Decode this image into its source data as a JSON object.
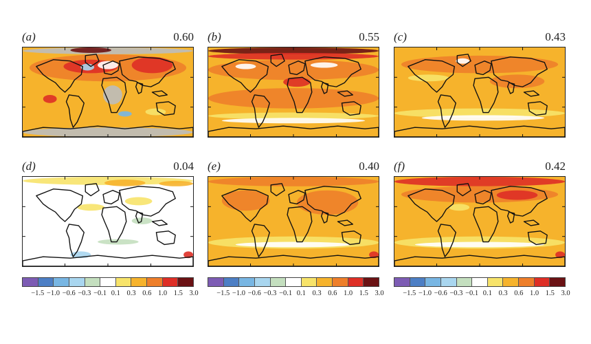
{
  "panels": [
    {
      "label": "(a)",
      "value": "0.60",
      "style": "a"
    },
    {
      "label": "(b)",
      "value": "0.55",
      "style": "b"
    },
    {
      "label": "(c)",
      "value": "0.43",
      "style": "c"
    },
    {
      "label": "(d)",
      "value": "0.04",
      "style": "d"
    },
    {
      "label": "(e)",
      "value": "0.40",
      "style": "e"
    },
    {
      "label": "(f)",
      "value": "0.42",
      "style": "f"
    }
  ],
  "colorbar": {
    "ticks": [
      "−1.5",
      "−1.0",
      "−0.6",
      "−0.3",
      "−0.1",
      "0.1",
      "0.3",
      "0.6",
      "1.0",
      "1.5",
      "3.0"
    ],
    "colors": [
      "#7d5cb4",
      "#4d7fc5",
      "#78b6e3",
      "#a9d6ef",
      "#c4dfbf",
      "#ffffff",
      "#f7e36a",
      "#f6b32c",
      "#ee7f2a",
      "#de2f26",
      "#6b1214"
    ]
  }
}
